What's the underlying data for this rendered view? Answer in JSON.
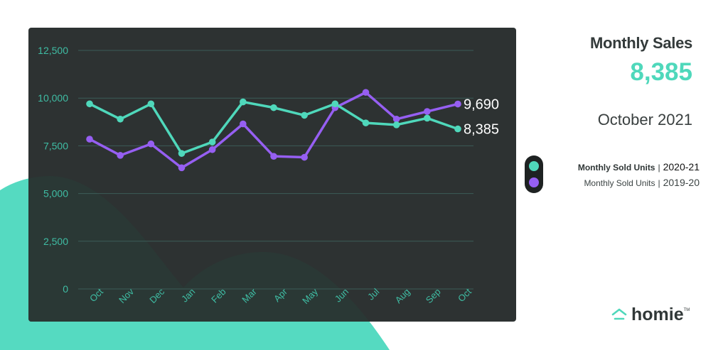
{
  "colors": {
    "panel_bg": "#2d3232",
    "teal": "#4fd8bb",
    "purple": "#965ff2",
    "grid": "#3c5c58",
    "tick": "#3fbda4"
  },
  "summary": {
    "title": "Monthly Sales",
    "value": "8,385",
    "period": "October 2021"
  },
  "legend": {
    "items": [
      {
        "label": "Monthly Sold Units",
        "separator": "|",
        "year": "2020-21",
        "color": "#4fd8bb"
      },
      {
        "label": "Monthly Sold Units",
        "separator": "|",
        "year": "2019-20",
        "color": "#965ff2"
      }
    ]
  },
  "brand": {
    "name": "homie",
    "tm": "TM",
    "icon": "house-roof-icon"
  },
  "chart_data": {
    "type": "line",
    "categories": [
      "Oct",
      "Nov",
      "Dec",
      "Jan",
      "Feb",
      "Mar",
      "Apr",
      "May",
      "Jun",
      "Jul",
      "Aug",
      "Sep",
      "Oct"
    ],
    "y_ticks": [
      0,
      2500,
      5000,
      7500,
      10000,
      12500
    ],
    "y_tick_labels": [
      "0",
      "2,500",
      "5,000",
      "7,500",
      "10,000",
      "12,500"
    ],
    "ylim": [
      0,
      12500
    ],
    "grid": true,
    "legend_placement": "right",
    "series": [
      {
        "name": "2020-21",
        "color": "#4fd8bb",
        "values": [
          9700,
          8900,
          9700,
          7100,
          7700,
          9800,
          9500,
          9100,
          9700,
          8700,
          8600,
          8950,
          8385
        ]
      },
      {
        "name": "2019-20",
        "color": "#965ff2",
        "values": [
          7850,
          7000,
          7600,
          6350,
          7300,
          8650,
          6950,
          6900,
          9500,
          10300,
          8900,
          9300,
          9690
        ]
      }
    ],
    "end_labels": [
      {
        "series": "2019-20",
        "text": "9,690"
      },
      {
        "series": "2020-21",
        "text": "8,385"
      }
    ]
  }
}
